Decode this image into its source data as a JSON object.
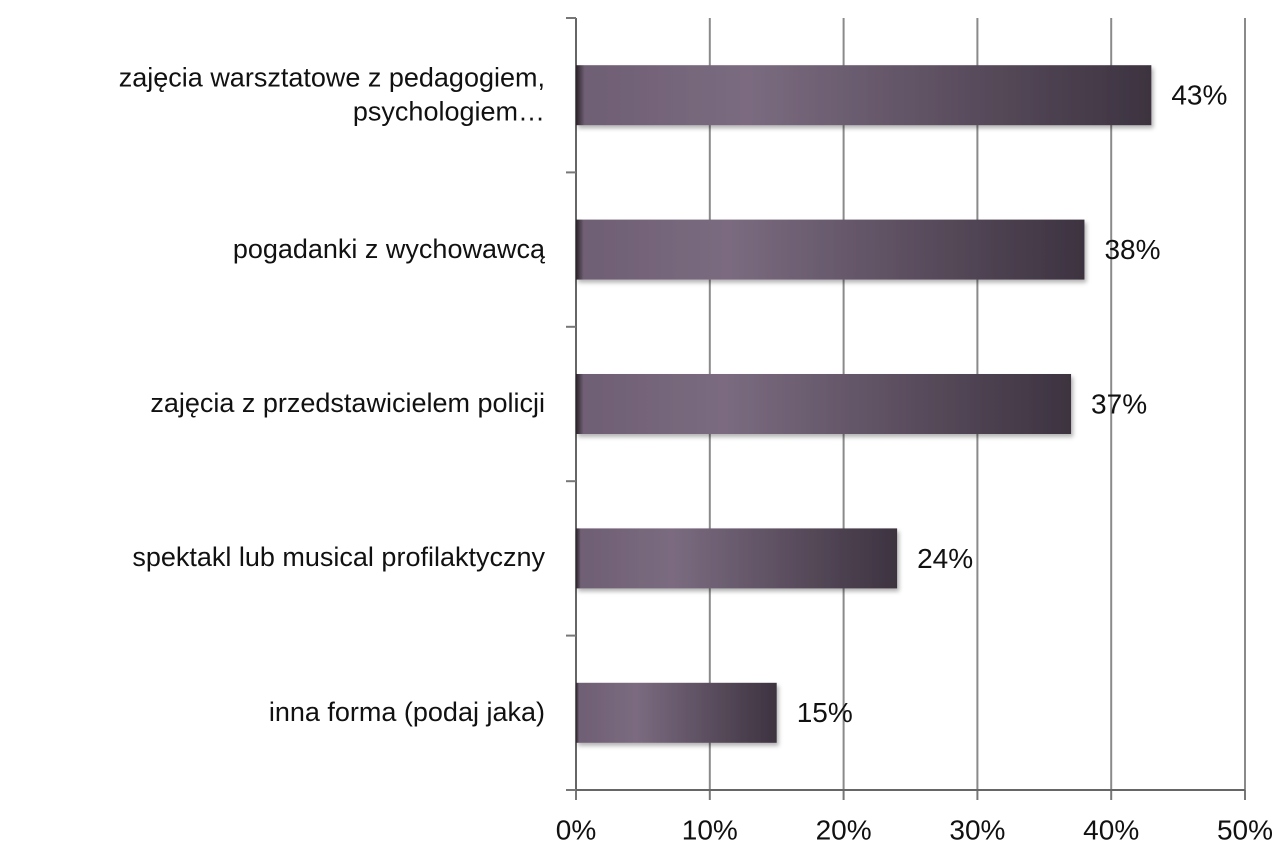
{
  "chart_data": {
    "type": "bar",
    "orientation": "horizontal",
    "categories": [
      "zajęcia warsztatowe z pedagogiem, psychologiem…",
      "pogadanki z wychowawcą",
      "zajęcia z przedstawicielem policji",
      "spektakl lub musical profilaktyczny",
      "inna forma (podaj jaka)"
    ],
    "values": [
      43,
      38,
      37,
      24,
      15
    ],
    "value_labels": [
      "43%",
      "38%",
      "37%",
      "24%",
      "15%"
    ],
    "color": "#7b6b80",
    "xlim": [
      0,
      50
    ],
    "xticks": [
      {
        "value": 0,
        "label": "0%"
      },
      {
        "value": 10,
        "label": "10%"
      },
      {
        "value": 20,
        "label": "20%"
      },
      {
        "value": 30,
        "label": "30%"
      },
      {
        "value": 40,
        "label": "40%"
      },
      {
        "value": 50,
        "label": "50%"
      }
    ],
    "grid": true
  }
}
